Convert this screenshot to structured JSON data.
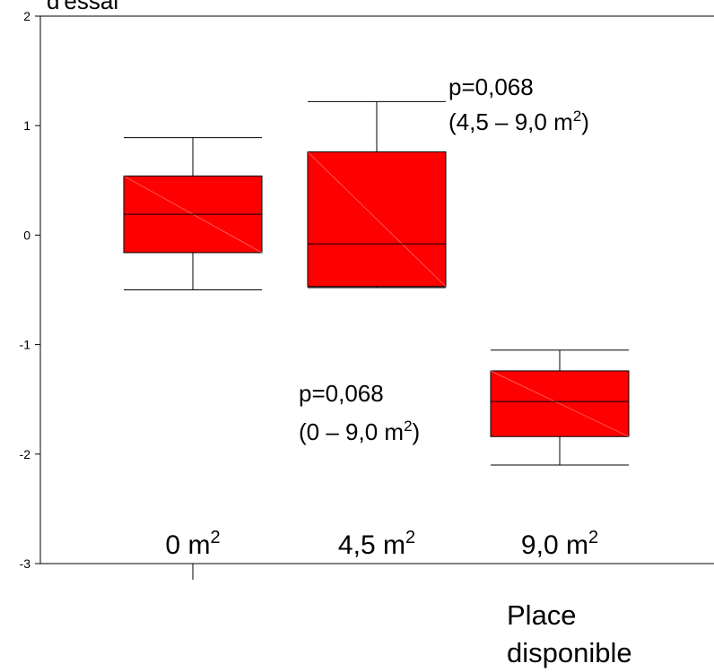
{
  "chart_data": {
    "type": "box",
    "title_fragment": "d'essai",
    "xlabel": [
      "Place",
      "disponible"
    ],
    "ylim": [
      -3,
      2
    ],
    "yticks": [
      "2",
      "1",
      "0",
      "-1",
      "-2",
      "-3"
    ],
    "categories": [
      "0 m",
      "4,5 m",
      "9,0 m"
    ],
    "category_superscript": "2",
    "boxes": [
      {
        "category": "0 m",
        "whisker_low": -0.5,
        "q1": -0.16,
        "median": 0.19,
        "q3": 0.54,
        "whisker_high": 0.89
      },
      {
        "category": "4,5 m",
        "whisker_low": -0.48,
        "q1": -0.47,
        "median": -0.08,
        "q3": 0.76,
        "whisker_high": 1.22
      },
      {
        "category": "9,0 m",
        "whisker_low": -2.1,
        "q1": -1.84,
        "median": -1.52,
        "q3": -1.24,
        "whisker_high": -1.05
      }
    ],
    "annotations": [
      {
        "line1": "p=0,068",
        "line2_pre": "(4,5 – 9,0 m",
        "sup": "2",
        "line2_post": ")"
      },
      {
        "line1": "p=0,068",
        "line2_pre": "(0 – 9,0 m",
        "sup": "2",
        "line2_post": ")"
      }
    ],
    "box_color": "#ff0000",
    "line_color": "#000000",
    "grid": false
  }
}
